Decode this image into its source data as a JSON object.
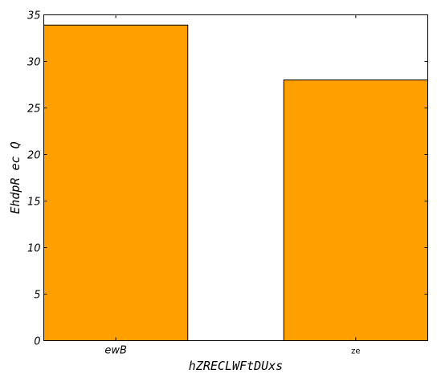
{
  "chart_data": {
    "type": "bar",
    "title": "",
    "xlabel": "hZRECLWFtDUxs",
    "ylabel": "EhdpR ec Q",
    "categories": [
      "ewB",
      "ze"
    ],
    "category_label_style": [
      "italic",
      "normal"
    ],
    "values": [
      33.9,
      28.0
    ],
    "ylim": [
      0,
      35
    ],
    "yticks": [
      0,
      5,
      10,
      15,
      20,
      25,
      30,
      35
    ],
    "ytick_labels": [
      "0",
      "5",
      "10",
      "15",
      "20",
      "25",
      "30",
      "35"
    ],
    "grid": false,
    "legend": "none",
    "bar_color": "#ffa000",
    "bar_edge_color": "#000000"
  }
}
